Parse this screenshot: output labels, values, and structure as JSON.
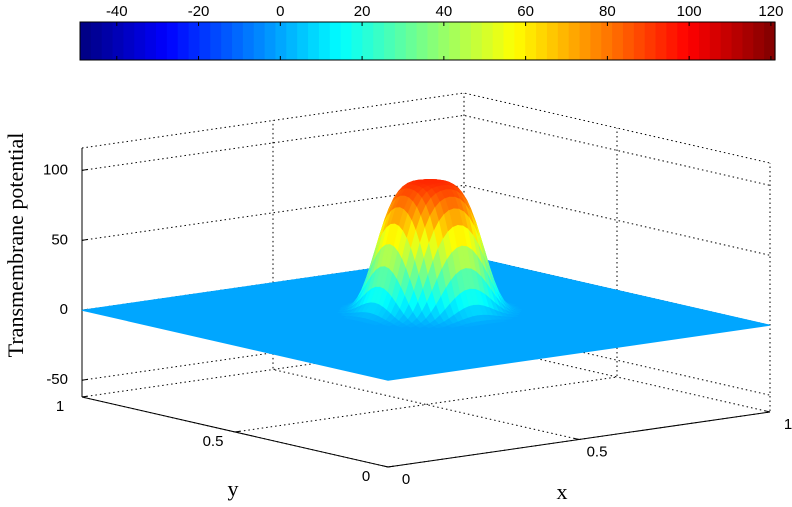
{
  "chart_data": {
    "type": "surface",
    "colormap": "jet",
    "zlabel": "Transmembrane potential",
    "xlabel": "x",
    "ylabel": "y",
    "xlim": [
      0,
      1
    ],
    "ylim": [
      0,
      1
    ],
    "zlim": [
      -62,
      116
    ],
    "xticks": [
      0,
      0.5,
      1
    ],
    "yticks": [
      0,
      0.5,
      1
    ],
    "zticks": [
      -50,
      0,
      50,
      100
    ],
    "clim": [
      -49,
      121
    ],
    "cticks": [
      -40,
      -20,
      0,
      20,
      40,
      60,
      80,
      100,
      120
    ],
    "base": 0,
    "bump": {
      "x": 0.55,
      "y": 0.55,
      "height": 93,
      "radius": 0.12
    },
    "grid": true
  }
}
